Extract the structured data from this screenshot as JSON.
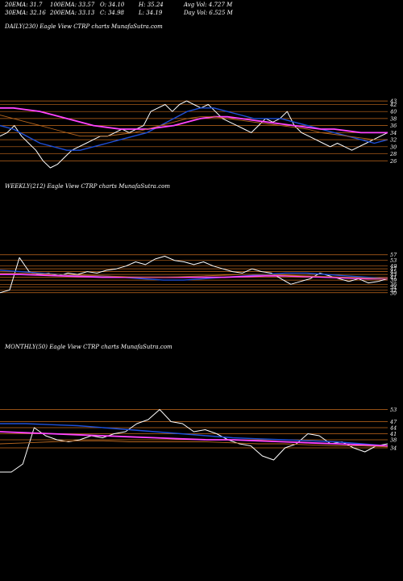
{
  "header": {
    "row1": [
      "20EMA: 31.7",
      "100EMA: 33.57",
      "O: 34.10",
      "H: 35.24",
      "Avg Vol: 4.727 M"
    ],
    "row2": [
      "30EMA: 32.16",
      "200EMA: 33.13",
      "C: 34.98",
      "L: 34.19",
      "Day Vol: 6.525 M"
    ]
  },
  "colors": {
    "background": "#000000",
    "price": "#ffffff",
    "ema_fast": "#1e4fd8",
    "ema_slow": "#ff44ff",
    "ema_mid": "#b5651d",
    "grid": "#c46a1c"
  },
  "chart_data": [
    {
      "type": "line",
      "title": "DAILY(230) Eagle  View  CTRP charts MunafaSutra.com",
      "ylim": [
        24,
        46
      ],
      "grid": true,
      "y_ticks": [
        "43",
        "42",
        "40",
        "38",
        "36",
        "34",
        "32",
        "30",
        "28",
        "26"
      ],
      "series": [
        {
          "role": "price",
          "values": [
            33,
            34,
            36,
            33,
            31,
            29,
            26,
            24,
            25,
            27,
            29,
            30,
            31,
            32,
            33,
            33,
            34,
            35,
            34,
            35,
            36,
            40,
            41,
            42,
            40,
            42,
            43,
            42,
            41,
            42,
            40,
            38,
            37,
            36,
            35,
            34,
            36,
            38,
            37,
            38,
            40,
            36,
            34,
            33,
            32,
            31,
            30,
            31,
            30,
            29,
            30,
            31,
            32,
            33,
            34
          ]
        },
        {
          "role": "ema-fast",
          "values": [
            36,
            35,
            33,
            31,
            30,
            29,
            29,
            30,
            31,
            32,
            33,
            34,
            36,
            38,
            40,
            41,
            41,
            40,
            39,
            38,
            38,
            38,
            37,
            36,
            35,
            34,
            33,
            32,
            31,
            32
          ]
        },
        {
          "role": "ema-slow",
          "values": [
            41,
            41,
            40.5,
            40,
            39,
            38,
            37,
            36,
            35.5,
            35,
            35,
            35,
            35.5,
            36,
            37,
            38,
            38.5,
            38.5,
            38,
            37.5,
            37,
            36.5,
            36,
            35.5,
            35,
            35,
            34.5,
            34,
            34,
            34
          ]
        },
        {
          "role": "ema-mid",
          "values": [
            39,
            38,
            37,
            36,
            35,
            34,
            33,
            33,
            33,
            33.5,
            34,
            35,
            36,
            37,
            38,
            38.5,
            38.5,
            38,
            37.5,
            37,
            36.5,
            36,
            35.5,
            35,
            34,
            33.5,
            33,
            32.5,
            32,
            32
          ]
        }
      ]
    },
    {
      "type": "line",
      "title": "WEEKLY(212) Eagle  View  CTRP charts MunafaSutra.com",
      "ylim": [
        27,
        58
      ],
      "grid": true,
      "y_ticks": [
        "57",
        "53",
        "49",
        "47",
        "45",
        "43",
        "41",
        "39",
        "36",
        "34",
        "32",
        "30"
      ],
      "series": [
        {
          "role": "price",
          "values": [
            30,
            32,
            55,
            45,
            43,
            44,
            42,
            44,
            43,
            45,
            44,
            46,
            47,
            49,
            52,
            50,
            54,
            56,
            53,
            52,
            50,
            52,
            49,
            47,
            45,
            44,
            47,
            45,
            44,
            40,
            36,
            38,
            40,
            44,
            42,
            40,
            38,
            40,
            37,
            38,
            40
          ]
        },
        {
          "role": "ema-fast",
          "values": [
            46,
            45,
            44,
            43,
            42,
            42,
            41,
            40,
            39,
            39,
            40,
            41,
            42,
            43,
            44,
            44,
            43,
            42,
            41,
            40
          ]
        },
        {
          "role": "ema-slow",
          "values": [
            43,
            43,
            42.5,
            42,
            41.5,
            41,
            41,
            41,
            41,
            41,
            41,
            41,
            41.5,
            42,
            42,
            41.5,
            41,
            40.5,
            40,
            40
          ]
        },
        {
          "role": "ema-mid",
          "values": [
            44,
            44,
            43.5,
            43,
            42.5,
            42,
            41.5,
            41,
            41,
            41.5,
            42,
            42.5,
            43,
            43,
            42.5,
            42,
            41.5,
            41,
            40.5,
            40
          ]
        }
      ]
    },
    {
      "type": "line",
      "title": "MONTHLY(50) Eagle  View  CTRP charts MunafaSutra.com",
      "ylim": [
        16,
        56
      ],
      "grid": true,
      "y_ticks": [
        "53",
        "47",
        "44",
        "41",
        "38",
        "34"
      ],
      "series": [
        {
          "role": "price",
          "values": [
            22,
            22,
            26,
            44,
            40,
            38,
            37,
            38,
            40,
            39,
            41,
            42,
            46,
            48,
            53,
            47,
            46,
            42,
            43,
            41,
            38,
            36,
            35,
            30,
            28,
            34,
            36,
            41,
            40,
            36,
            37,
            34,
            32,
            35,
            36
          ]
        },
        {
          "role": "ema-fast",
          "values": [
            46,
            46,
            45.5,
            45,
            44,
            43,
            42,
            41,
            40,
            39,
            38.5,
            38,
            37.5,
            37,
            36,
            35
          ]
        },
        {
          "role": "ema-slow",
          "values": [
            42,
            41.5,
            41,
            40.5,
            40,
            39.5,
            39,
            38.5,
            38,
            38,
            37.5,
            37,
            36.5,
            36,
            35.5,
            35
          ]
        },
        {
          "role": "ema-mid",
          "values": [
            36,
            36.5,
            37,
            37.5,
            37.5,
            37,
            37,
            37,
            37,
            36.5,
            36,
            36,
            35.5,
            35,
            35,
            34.5
          ]
        }
      ]
    }
  ]
}
